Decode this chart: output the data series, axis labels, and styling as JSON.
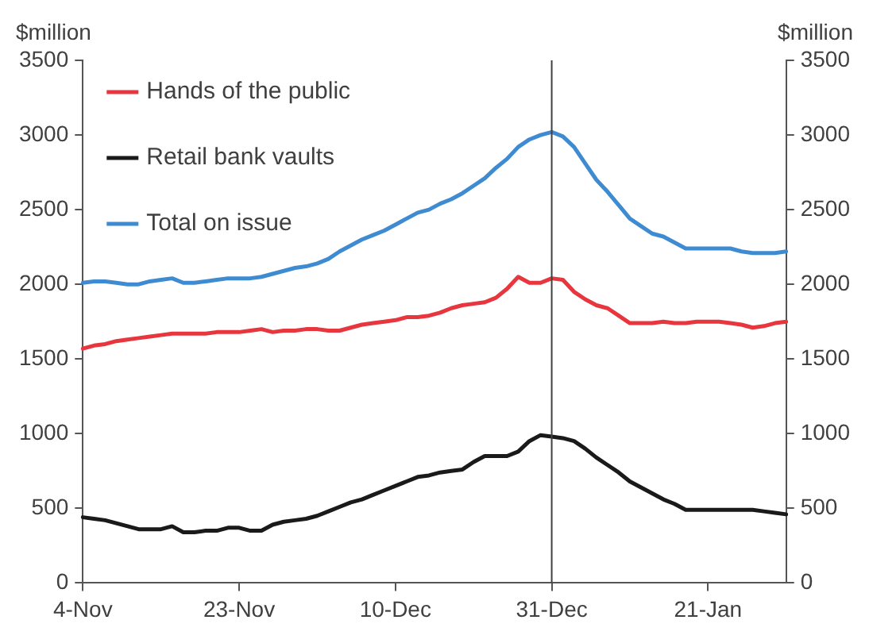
{
  "chart_data": {
    "type": "line",
    "ylabel": "$million",
    "y2label": "$million",
    "categories": [
      "4-Nov",
      null,
      null,
      null,
      null,
      null,
      null,
      null,
      null,
      null,
      null,
      null,
      null,
      null,
      "23-Nov",
      null,
      null,
      null,
      null,
      null,
      null,
      null,
      null,
      null,
      null,
      null,
      null,
      null,
      "10-Dec",
      null,
      null,
      null,
      null,
      null,
      null,
      null,
      null,
      null,
      null,
      null,
      null,
      null,
      "31-Dec",
      null,
      null,
      null,
      null,
      null,
      null,
      null,
      null,
      null,
      null,
      null,
      null,
      null,
      "21-Jan",
      null,
      null,
      null,
      null,
      null,
      null,
      null
    ],
    "ylim": [
      0,
      3500
    ],
    "yticks": [
      0,
      500,
      1000,
      1500,
      2000,
      2500,
      3000,
      3500
    ],
    "y2lim": [
      0,
      3500
    ],
    "y2ticks": [
      0,
      500,
      1000,
      1500,
      2000,
      2500,
      3000,
      3500
    ],
    "grid": false,
    "legend": "top left",
    "marker": "none",
    "line_style": "solid",
    "ref_lines": [
      {
        "axis": "x",
        "value": "31-Dec",
        "color": "#404040"
      }
    ],
    "series": [
      {
        "name": "Hands of the public",
        "color": "#e8363f",
        "values": [
          1570,
          1590,
          1600,
          1620,
          1630,
          1640,
          1650,
          1660,
          1670,
          1670,
          1670,
          1670,
          1680,
          1680,
          1680,
          1690,
          1700,
          1680,
          1690,
          1690,
          1700,
          1700,
          1690,
          1690,
          1710,
          1730,
          1740,
          1750,
          1760,
          1780,
          1780,
          1790,
          1810,
          1840,
          1860,
          1870,
          1880,
          1910,
          1970,
          2050,
          2010,
          2010,
          2040,
          2030,
          1950,
          1900,
          1860,
          1840,
          1790,
          1740,
          1740,
          1740,
          1750,
          1740,
          1740,
          1750,
          1750,
          1750,
          1740,
          1730,
          1710,
          1720,
          1740,
          1750
        ]
      },
      {
        "name": "Retail bank vaults",
        "color": "#1a1a1a",
        "values": [
          440,
          430,
          420,
          400,
          380,
          360,
          360,
          360,
          380,
          340,
          340,
          350,
          350,
          370,
          370,
          350,
          350,
          390,
          410,
          420,
          430,
          450,
          480,
          510,
          540,
          560,
          590,
          620,
          650,
          680,
          710,
          720,
          740,
          750,
          760,
          810,
          850,
          850,
          850,
          880,
          950,
          990,
          980,
          970,
          950,
          900,
          840,
          790,
          740,
          680,
          640,
          600,
          560,
          530,
          490,
          490,
          490,
          490,
          490,
          490,
          490,
          480,
          470,
          460
        ]
      },
      {
        "name": "Total on issue",
        "color": "#3f8bd1",
        "values": [
          2010,
          2020,
          2020,
          2010,
          2000,
          2000,
          2020,
          2030,
          2040,
          2010,
          2010,
          2020,
          2030,
          2040,
          2040,
          2040,
          2050,
          2070,
          2090,
          2110,
          2120,
          2140,
          2170,
          2220,
          2260,
          2300,
          2330,
          2360,
          2400,
          2440,
          2480,
          2500,
          2540,
          2570,
          2610,
          2660,
          2710,
          2780,
          2840,
          2920,
          2970,
          3000,
          3020,
          2990,
          2920,
          2810,
          2700,
          2620,
          2530,
          2440,
          2390,
          2340,
          2320,
          2280,
          2240,
          2240,
          2240,
          2240,
          2240,
          2220,
          2210,
          2210,
          2210,
          2220
        ]
      }
    ]
  }
}
